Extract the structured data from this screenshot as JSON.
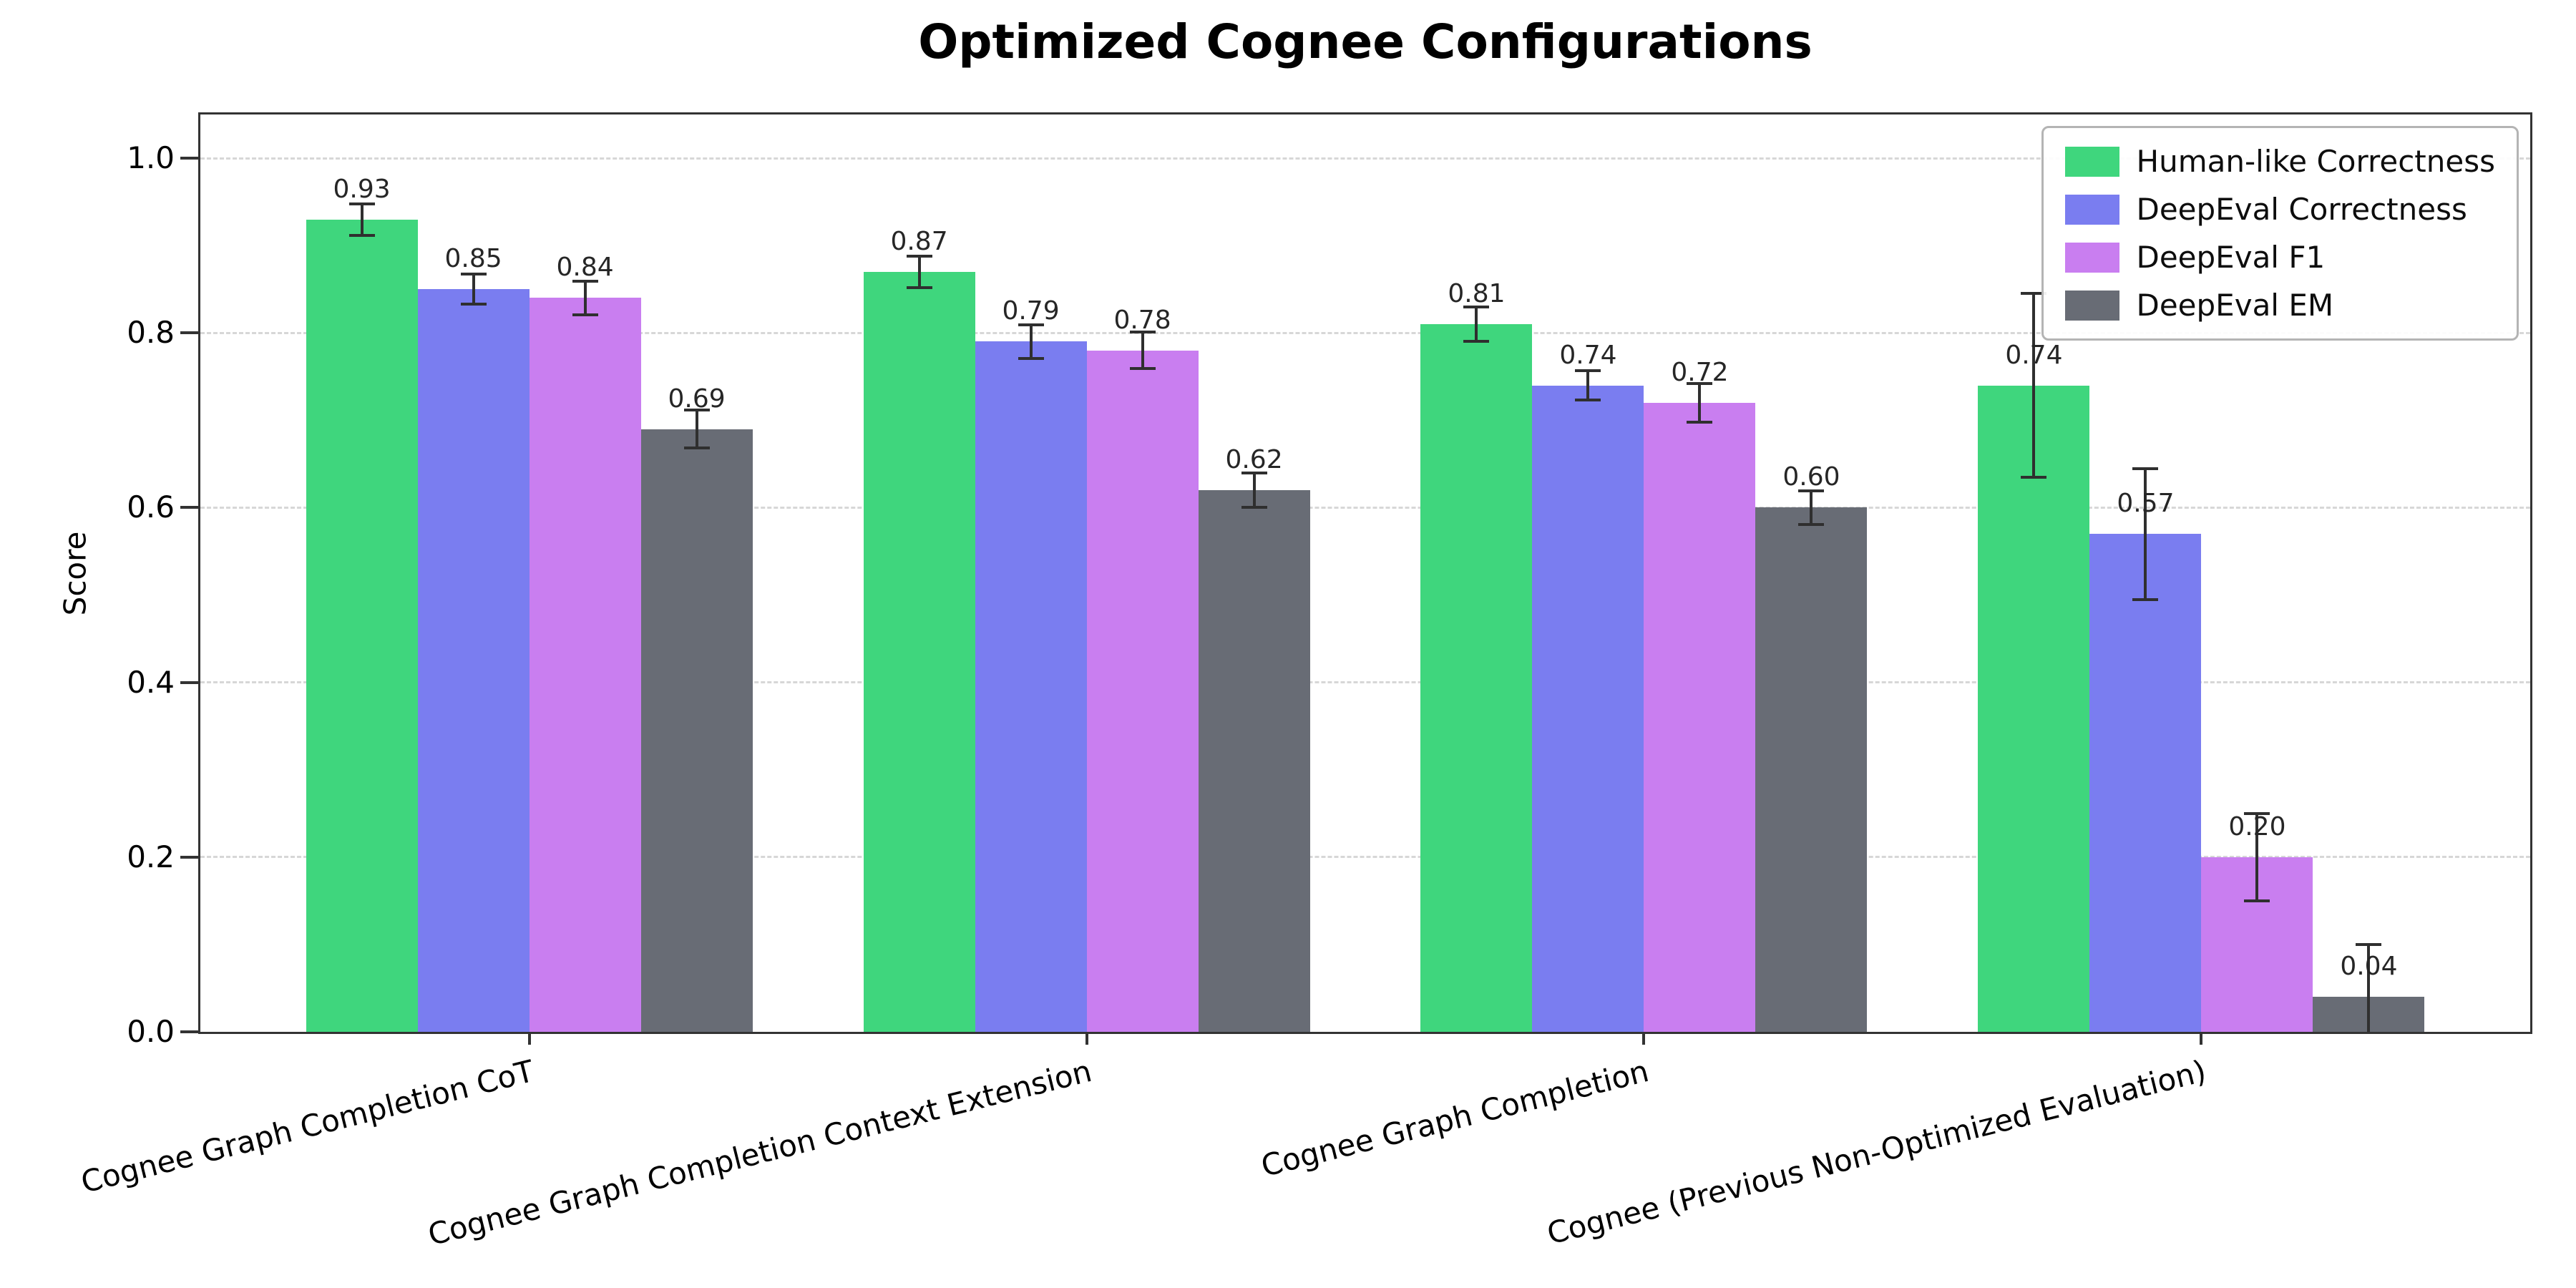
{
  "chart_data": {
    "type": "bar",
    "title": "Optimized Cognee Configurations",
    "xlabel": "",
    "ylabel": "Score",
    "ylim": [
      0,
      1.05
    ],
    "yticks": [
      0.0,
      0.2,
      0.4,
      0.6,
      0.8,
      1.0
    ],
    "grid": "horizontal dashed",
    "legend_position": "upper right",
    "error_bar_color": "#2f2f2f",
    "value_label_decimals": 2,
    "categories": [
      "Cognee Graph Completion CoT",
      "Cognee Graph Completion Context Extension",
      "Cognee Graph Completion",
      "Cognee (Previous Non-Optimized Evaluation)"
    ],
    "series": [
      {
        "name": "Human-like Correctness",
        "color": "#3fd67d",
        "values": [
          0.93,
          0.87,
          0.81,
          0.74
        ],
        "errors": [
          0.018,
          0.018,
          0.02,
          0.105
        ]
      },
      {
        "name": "DeepEval Correctness",
        "color": "#7a7df0",
        "values": [
          0.85,
          0.79,
          0.74,
          0.57
        ],
        "errors": [
          0.017,
          0.019,
          0.017,
          0.075
        ]
      },
      {
        "name": "DeepEval F1",
        "color": "#c97ef0",
        "values": [
          0.84,
          0.78,
          0.72,
          0.2
        ],
        "errors": [
          0.019,
          0.021,
          0.022,
          0.05
        ]
      },
      {
        "name": "DeepEval EM",
        "color": "#686c75",
        "values": [
          0.69,
          0.62,
          0.6,
          0.04
        ],
        "errors": [
          0.022,
          0.02,
          0.019,
          0.06
        ]
      }
    ]
  }
}
